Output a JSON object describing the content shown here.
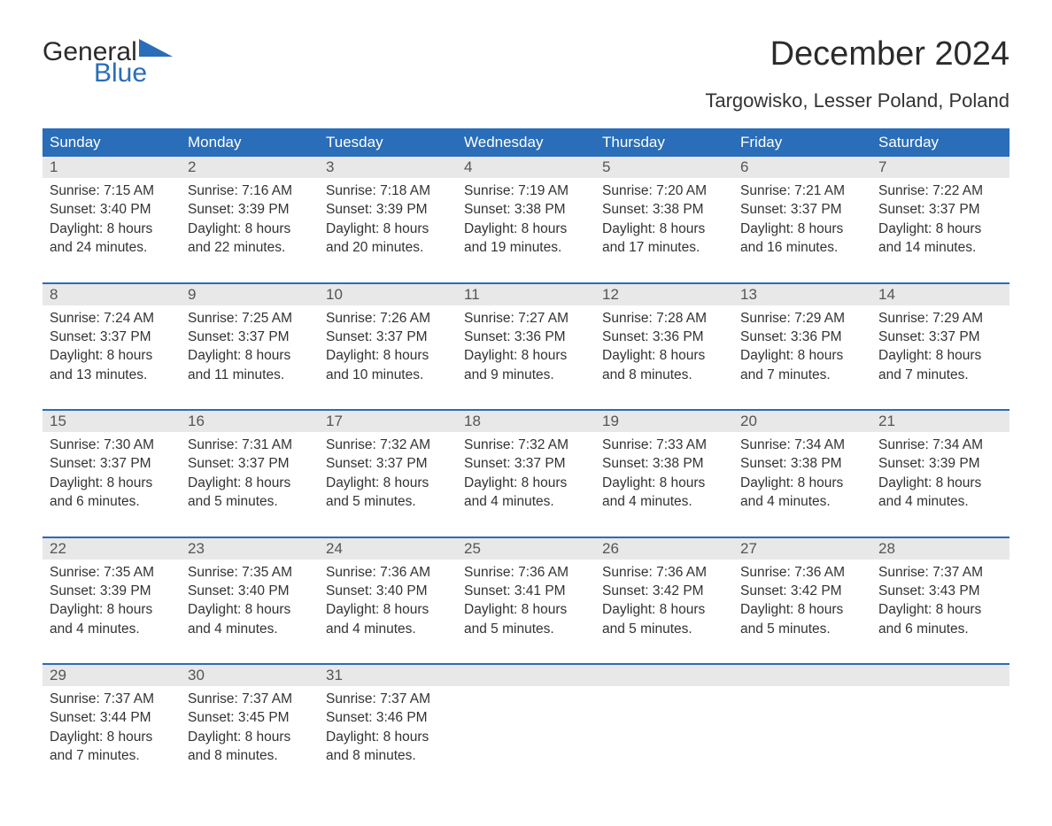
{
  "logo": {
    "top": "General",
    "bottom": "Blue",
    "triangle_color": "#2a6db8"
  },
  "title": "December 2024",
  "location": "Targowisko, Lesser Poland, Poland",
  "colors": {
    "header_bg": "#2a6db8",
    "header_text": "#ffffff",
    "daynum_bg": "#e8e8e8",
    "week_border": "#2a6db8",
    "body_text": "#333333",
    "logo_blue": "#2a6db8",
    "page_bg": "#ffffff"
  },
  "typography": {
    "title_fontsize": 38,
    "location_fontsize": 22,
    "dayhead_fontsize": 17,
    "daynum_fontsize": 17,
    "body_fontsize": 15.5,
    "logo_fontsize": 30
  },
  "day_headers": [
    "Sunday",
    "Monday",
    "Tuesday",
    "Wednesday",
    "Thursday",
    "Friday",
    "Saturday"
  ],
  "weeks": [
    [
      {
        "n": "1",
        "sunrise": "7:15 AM",
        "sunset": "3:40 PM",
        "dl1": "8 hours",
        "dl2": "and 24 minutes."
      },
      {
        "n": "2",
        "sunrise": "7:16 AM",
        "sunset": "3:39 PM",
        "dl1": "8 hours",
        "dl2": "and 22 minutes."
      },
      {
        "n": "3",
        "sunrise": "7:18 AM",
        "sunset": "3:39 PM",
        "dl1": "8 hours",
        "dl2": "and 20 minutes."
      },
      {
        "n": "4",
        "sunrise": "7:19 AM",
        "sunset": "3:38 PM",
        "dl1": "8 hours",
        "dl2": "and 19 minutes."
      },
      {
        "n": "5",
        "sunrise": "7:20 AM",
        "sunset": "3:38 PM",
        "dl1": "8 hours",
        "dl2": "and 17 minutes."
      },
      {
        "n": "6",
        "sunrise": "7:21 AM",
        "sunset": "3:37 PM",
        "dl1": "8 hours",
        "dl2": "and 16 minutes."
      },
      {
        "n": "7",
        "sunrise": "7:22 AM",
        "sunset": "3:37 PM",
        "dl1": "8 hours",
        "dl2": "and 14 minutes."
      }
    ],
    [
      {
        "n": "8",
        "sunrise": "7:24 AM",
        "sunset": "3:37 PM",
        "dl1": "8 hours",
        "dl2": "and 13 minutes."
      },
      {
        "n": "9",
        "sunrise": "7:25 AM",
        "sunset": "3:37 PM",
        "dl1": "8 hours",
        "dl2": "and 11 minutes."
      },
      {
        "n": "10",
        "sunrise": "7:26 AM",
        "sunset": "3:37 PM",
        "dl1": "8 hours",
        "dl2": "and 10 minutes."
      },
      {
        "n": "11",
        "sunrise": "7:27 AM",
        "sunset": "3:36 PM",
        "dl1": "8 hours",
        "dl2": "and 9 minutes."
      },
      {
        "n": "12",
        "sunrise": "7:28 AM",
        "sunset": "3:36 PM",
        "dl1": "8 hours",
        "dl2": "and 8 minutes."
      },
      {
        "n": "13",
        "sunrise": "7:29 AM",
        "sunset": "3:36 PM",
        "dl1": "8 hours",
        "dl2": "and 7 minutes."
      },
      {
        "n": "14",
        "sunrise": "7:29 AM",
        "sunset": "3:37 PM",
        "dl1": "8 hours",
        "dl2": "and 7 minutes."
      }
    ],
    [
      {
        "n": "15",
        "sunrise": "7:30 AM",
        "sunset": "3:37 PM",
        "dl1": "8 hours",
        "dl2": "and 6 minutes."
      },
      {
        "n": "16",
        "sunrise": "7:31 AM",
        "sunset": "3:37 PM",
        "dl1": "8 hours",
        "dl2": "and 5 minutes."
      },
      {
        "n": "17",
        "sunrise": "7:32 AM",
        "sunset": "3:37 PM",
        "dl1": "8 hours",
        "dl2": "and 5 minutes."
      },
      {
        "n": "18",
        "sunrise": "7:32 AM",
        "sunset": "3:37 PM",
        "dl1": "8 hours",
        "dl2": "and 4 minutes."
      },
      {
        "n": "19",
        "sunrise": "7:33 AM",
        "sunset": "3:38 PM",
        "dl1": "8 hours",
        "dl2": "and 4 minutes."
      },
      {
        "n": "20",
        "sunrise": "7:34 AM",
        "sunset": "3:38 PM",
        "dl1": "8 hours",
        "dl2": "and 4 minutes."
      },
      {
        "n": "21",
        "sunrise": "7:34 AM",
        "sunset": "3:39 PM",
        "dl1": "8 hours",
        "dl2": "and 4 minutes."
      }
    ],
    [
      {
        "n": "22",
        "sunrise": "7:35 AM",
        "sunset": "3:39 PM",
        "dl1": "8 hours",
        "dl2": "and 4 minutes."
      },
      {
        "n": "23",
        "sunrise": "7:35 AM",
        "sunset": "3:40 PM",
        "dl1": "8 hours",
        "dl2": "and 4 minutes."
      },
      {
        "n": "24",
        "sunrise": "7:36 AM",
        "sunset": "3:40 PM",
        "dl1": "8 hours",
        "dl2": "and 4 minutes."
      },
      {
        "n": "25",
        "sunrise": "7:36 AM",
        "sunset": "3:41 PM",
        "dl1": "8 hours",
        "dl2": "and 5 minutes."
      },
      {
        "n": "26",
        "sunrise": "7:36 AM",
        "sunset": "3:42 PM",
        "dl1": "8 hours",
        "dl2": "and 5 minutes."
      },
      {
        "n": "27",
        "sunrise": "7:36 AM",
        "sunset": "3:42 PM",
        "dl1": "8 hours",
        "dl2": "and 5 minutes."
      },
      {
        "n": "28",
        "sunrise": "7:37 AM",
        "sunset": "3:43 PM",
        "dl1": "8 hours",
        "dl2": "and 6 minutes."
      }
    ],
    [
      {
        "n": "29",
        "sunrise": "7:37 AM",
        "sunset": "3:44 PM",
        "dl1": "8 hours",
        "dl2": "and 7 minutes."
      },
      {
        "n": "30",
        "sunrise": "7:37 AM",
        "sunset": "3:45 PM",
        "dl1": "8 hours",
        "dl2": "and 8 minutes."
      },
      {
        "n": "31",
        "sunrise": "7:37 AM",
        "sunset": "3:46 PM",
        "dl1": "8 hours",
        "dl2": "and 8 minutes."
      },
      null,
      null,
      null,
      null
    ]
  ],
  "labels": {
    "sunrise_prefix": "Sunrise: ",
    "sunset_prefix": "Sunset: ",
    "daylight_prefix": "Daylight: "
  }
}
